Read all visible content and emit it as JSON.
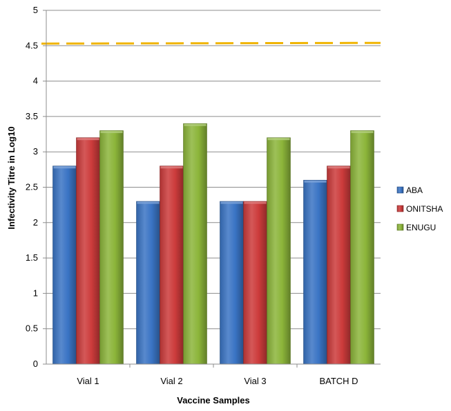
{
  "chart_data": {
    "type": "bar",
    "title": "",
    "xlabel": "Vaccine Samples",
    "ylabel": "Infectivity Titre in Log10",
    "categories": [
      "Vial 1",
      "Vial 2",
      "Vial 3",
      "BATCH D"
    ],
    "ylim": [
      0,
      5
    ],
    "yticks": [
      "0",
      "0.5",
      "1",
      "1.5",
      "2",
      "2.5",
      "3",
      "3.5",
      "4",
      "4.5",
      "5"
    ],
    "grid": true,
    "legend": "right",
    "series": [
      {
        "name": "ABA",
        "values": [
          2.8,
          2.3,
          2.3,
          2.6
        ],
        "color": "#3a74c4"
      },
      {
        "name": "ONITSHA",
        "values": [
          3.2,
          2.8,
          2.3,
          2.8
        ],
        "color": "#cc3b3b"
      },
      {
        "name": "ENUGU",
        "values": [
          3.3,
          3.4,
          3.2,
          3.3
        ],
        "color": "#8cb53a"
      }
    ],
    "reference_line": {
      "value": 4.53,
      "color": "#f0b400",
      "style": "dashed"
    }
  }
}
